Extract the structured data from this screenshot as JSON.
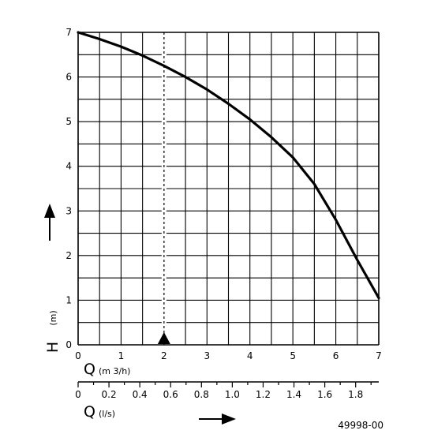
{
  "chart_data": {
    "type": "line",
    "x_axis_primary": {
      "label": "Q",
      "unit": "(m 3/h)",
      "range": [
        0,
        7
      ],
      "tick_labels": [
        "0",
        "1",
        "2",
        "3",
        "4",
        "5",
        "6",
        "7"
      ]
    },
    "x_axis_secondary": {
      "label": "Q",
      "unit": "(l/s)",
      "range": [
        0,
        1.95
      ],
      "tick_labels": [
        "0",
        "0.2",
        "0.4",
        "0.6",
        "0.8",
        "1.0",
        "1.2",
        "1.4",
        "1.6",
        "1.8"
      ]
    },
    "y_axis": {
      "label": "H",
      "unit": "(m)",
      "range": [
        0,
        7
      ],
      "tick_labels": [
        "0",
        "1",
        "2",
        "3",
        "4",
        "5",
        "6",
        "7"
      ]
    },
    "grid": true,
    "series": [
      {
        "x": [
          0,
          0.5,
          1,
          1.5,
          2,
          2.5,
          3,
          3.5,
          4,
          4.5,
          5,
          5.5,
          6,
          6.5,
          7
        ],
        "y": [
          7.0,
          6.85,
          6.68,
          6.48,
          6.25,
          6.0,
          5.72,
          5.4,
          5.05,
          4.65,
          4.2,
          3.6,
          2.8,
          1.9,
          1.05
        ]
      }
    ],
    "marker": {
      "x": 2
    },
    "annotation": "49998-00"
  }
}
